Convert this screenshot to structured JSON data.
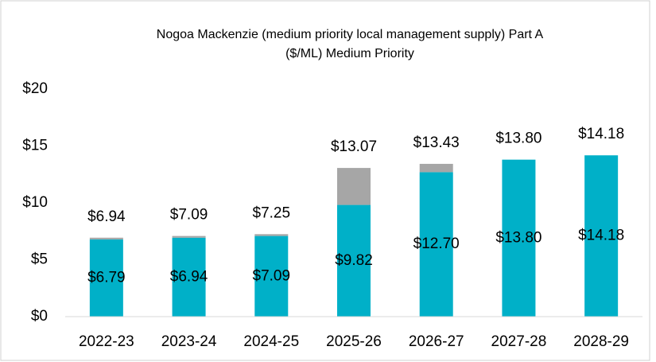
{
  "chart_data": {
    "type": "stacked_bar",
    "title": "Nogoa Mackenzie (medium priority local management supply) Part A",
    "subtitle": "($/ML) Medium Priority",
    "categories": [
      "2022-23",
      "2023-24",
      "2024-25",
      "2025-26",
      "2026-27",
      "2027-28",
      "2028-29"
    ],
    "series": [
      {
        "color": "#00b0c8",
        "values": [
          6.79,
          6.94,
          7.09,
          9.82,
          12.7,
          13.8,
          14.18
        ],
        "value_labels": [
          "$6.79",
          "$6.94",
          "$7.09",
          "$9.82",
          "$12.70",
          "$13.80",
          "$14.18"
        ]
      },
      {
        "color": "#a6a6a6",
        "values": [
          0.15,
          0.15,
          0.16,
          3.25,
          0.73,
          0,
          0
        ]
      }
    ],
    "totals": [
      6.94,
      7.09,
      7.25,
      13.07,
      13.43,
      13.8,
      14.18
    ],
    "total_labels": [
      "$6.94",
      "$7.09",
      "$7.25",
      "$13.07",
      "$13.43",
      "$13.80",
      "$14.18"
    ],
    "ylim": [
      0,
      20
    ],
    "yticks": [
      {
        "value": 0,
        "label": "$0"
      },
      {
        "value": 5,
        "label": "$5"
      },
      {
        "value": 10,
        "label": "$10"
      },
      {
        "value": 15,
        "label": "$15"
      },
      {
        "value": 20,
        "label": "$20"
      }
    ]
  }
}
